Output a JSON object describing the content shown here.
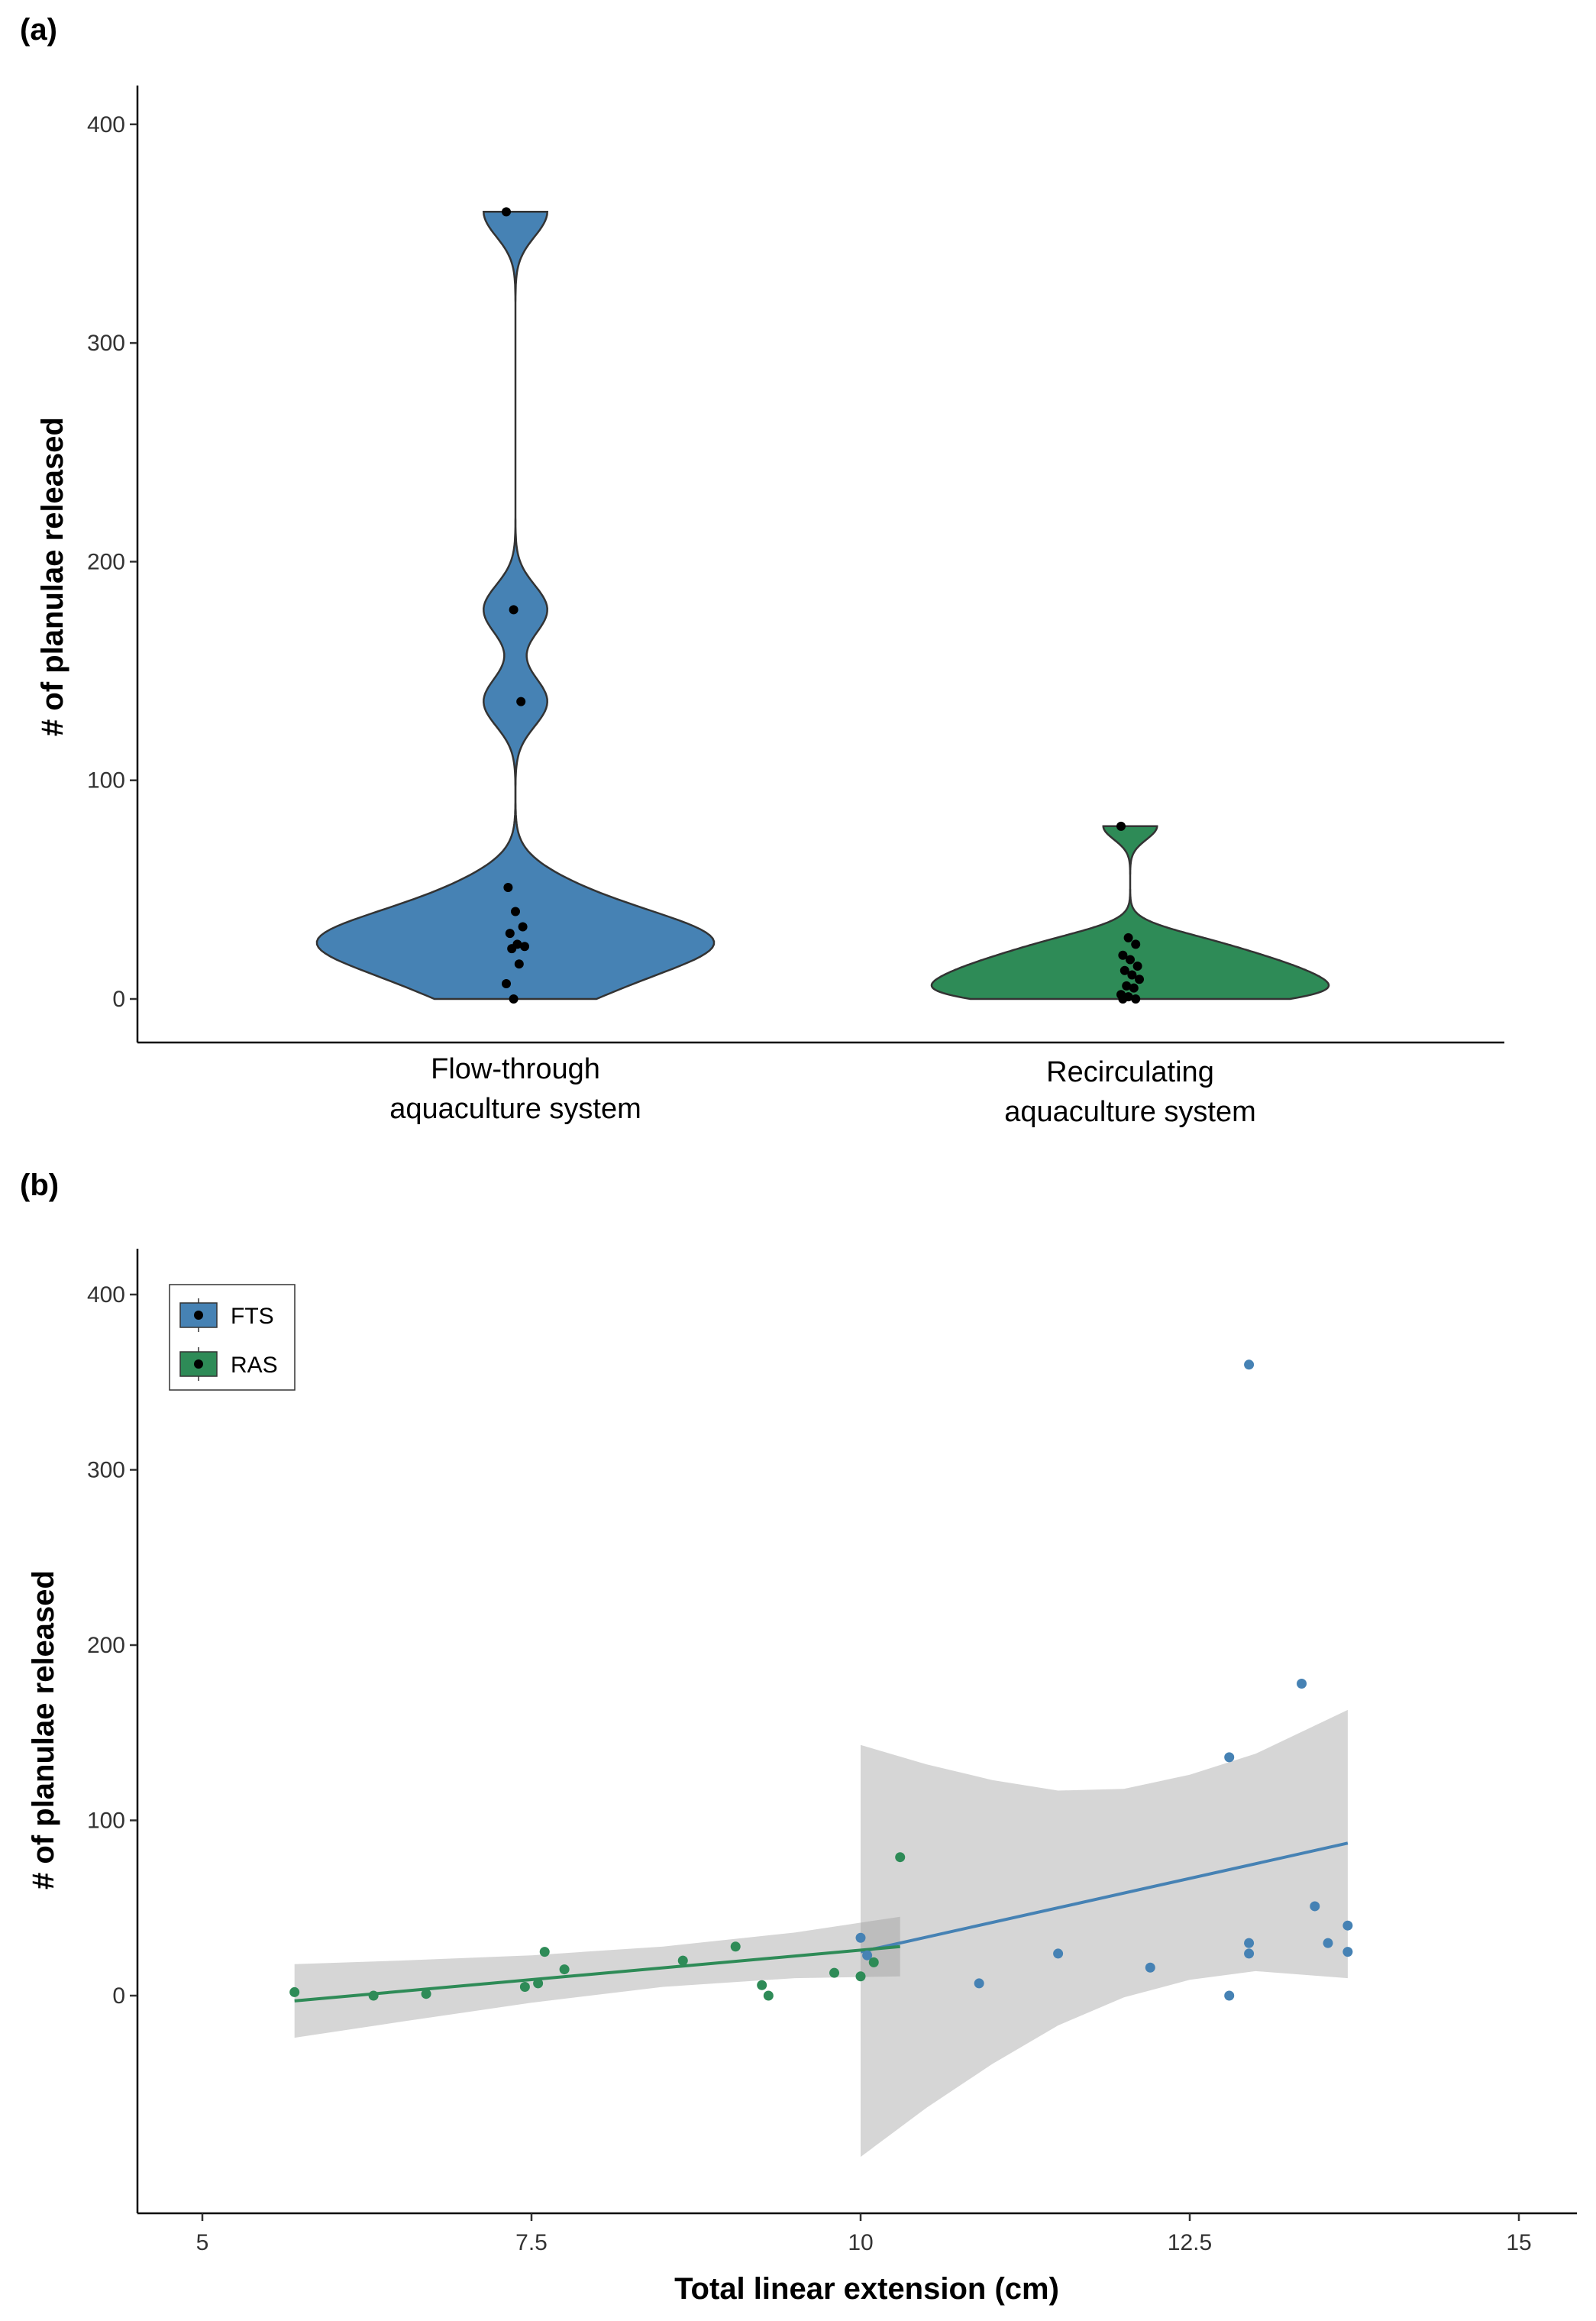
{
  "chart_data": [
    {
      "panel_label": "(a)",
      "type": "violin",
      "ylabel": "# of planulae released",
      "ylim": [
        -20,
        420
      ],
      "yticks": [
        0,
        100,
        200,
        300,
        400
      ],
      "categories": [
        {
          "label_lines": [
            "Flow-through",
            "aquaculture system"
          ],
          "color": "#4682B4",
          "points": [
            360,
            178,
            136,
            51,
            40,
            33,
            30,
            25,
            24,
            23,
            16,
            7,
            0
          ]
        },
        {
          "label_lines": [
            "Recirculating",
            "aquaculture system"
          ],
          "color": "#2E8B57",
          "points": [
            79,
            28,
            25,
            20,
            18,
            15,
            13,
            11,
            9,
            6,
            5,
            2,
            1,
            0,
            0
          ]
        }
      ],
      "grid": false
    },
    {
      "panel_label": "(b)",
      "type": "scatter",
      "xlabel": "Total linear extension (cm)",
      "ylabel": "# of planulae released",
      "xlim": [
        4.5,
        15.5
      ],
      "ylim": [
        -125,
        425
      ],
      "xticks": [
        5,
        7.5,
        10,
        12.5,
        15
      ],
      "xtick_labels": [
        "5",
        "7.5",
        "10",
        "12.5",
        "15"
      ],
      "yticks": [
        0,
        100,
        200,
        300,
        400
      ],
      "legend": {
        "position": "top-left",
        "entries": [
          "FTS",
          "RAS"
        ]
      },
      "series": [
        {
          "name": "FTS",
          "color": "#4682B4",
          "points": [
            [
              12.95,
              360
            ],
            [
              13.35,
              178
            ],
            [
              12.8,
              136
            ],
            [
              13.45,
              51
            ],
            [
              13.7,
              40
            ],
            [
              10.0,
              33
            ],
            [
              12.95,
              30
            ],
            [
              13.55,
              30
            ],
            [
              13.7,
              25
            ],
            [
              11.5,
              24
            ],
            [
              12.95,
              24
            ],
            [
              10.05,
              23
            ],
            [
              12.2,
              16
            ],
            [
              10.9,
              7
            ],
            [
              12.8,
              0
            ]
          ],
          "fit": {
            "x": [
              10.0,
              13.7
            ],
            "y": [
              25,
              87
            ]
          },
          "ci": {
            "x": [
              10.0,
              10.5,
              11.0,
              11.5,
              12.0,
              12.5,
              13.0,
              13.7
            ],
            "upper": [
              143,
              132,
              123,
              117,
              118,
              126,
              138,
              163
            ],
            "lower": [
              -92,
              -64,
              -39,
              -17,
              -1,
              9,
              14,
              10
            ]
          }
        },
        {
          "name": "RAS",
          "color": "#2E8B57",
          "points": [
            [
              10.3,
              79
            ],
            [
              9.05,
              28
            ],
            [
              7.6,
              25
            ],
            [
              8.65,
              20
            ],
            [
              10.1,
              19
            ],
            [
              7.75,
              15
            ],
            [
              9.8,
              13
            ],
            [
              10.0,
              11
            ],
            [
              7.55,
              7
            ],
            [
              9.25,
              6
            ],
            [
              7.45,
              5
            ],
            [
              5.7,
              2
            ],
            [
              6.7,
              1
            ],
            [
              6.3,
              0
            ],
            [
              9.3,
              0
            ]
          ],
          "fit": {
            "x": [
              5.7,
              10.3
            ],
            "y": [
              -3,
              28
            ]
          },
          "ci": {
            "x": [
              5.7,
              6.5,
              7.5,
              8.5,
              9.5,
              10.3
            ],
            "upper": [
              18,
              20,
              23,
              28,
              36,
              45
            ],
            "lower": [
              -24,
              -15,
              -4,
              5,
              10,
              11
            ]
          }
        }
      ],
      "grid": false
    }
  ]
}
